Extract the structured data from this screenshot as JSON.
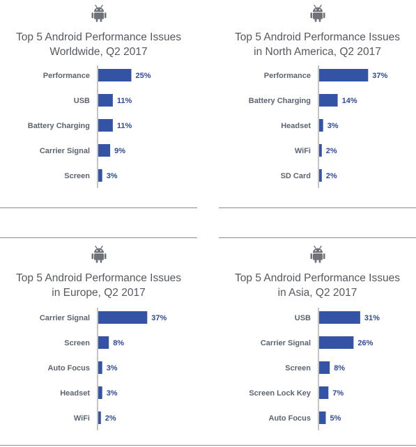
{
  "colors": {
    "bar": "#3553a4",
    "label": "#5c6470",
    "value": "#2f4a9a",
    "title": "#55585e",
    "axis": "#8a8a8a"
  },
  "icon": "android-icon",
  "chart_data": [
    {
      "type": "bar",
      "orientation": "horizontal",
      "title_lines": [
        "Top 5 Android Performance Issues",
        "Worldwide, Q2 2017"
      ],
      "categories": [
        "Performance",
        "USB",
        "Battery Charging",
        "Carrier Signal",
        "Screen"
      ],
      "values": [
        25,
        11,
        11,
        9,
        3
      ],
      "value_labels": [
        "25%",
        "11%",
        "11%",
        "9%",
        "3%"
      ],
      "unit": "%"
    },
    {
      "type": "bar",
      "orientation": "horizontal",
      "title_lines": [
        "Top 5 Android Performance Issues",
        "in North America, Q2 2017"
      ],
      "categories": [
        "Performance",
        "Battery Charging",
        "Headset",
        "WiFi",
        "SD Card"
      ],
      "values": [
        37,
        14,
        3,
        2,
        2
      ],
      "value_labels": [
        "37%",
        "14%",
        "3%",
        "2%",
        "2%"
      ],
      "unit": "%"
    },
    {
      "type": "bar",
      "orientation": "horizontal",
      "title_lines": [
        "Top 5 Android Performance Issues",
        "in Europe, Q2 2017"
      ],
      "categories": [
        "Carrier Signal",
        "Screen",
        "Auto Focus",
        "Headset",
        "WiFi"
      ],
      "values": [
        37,
        8,
        3,
        3,
        2
      ],
      "value_labels": [
        "37%",
        "8%",
        "3%",
        "3%",
        "2%"
      ],
      "unit": "%"
    },
    {
      "type": "bar",
      "orientation": "horizontal",
      "title_lines": [
        "Top 5 Android Performance Issues",
        "in Asia, Q2 2017"
      ],
      "categories": [
        "USB",
        "Carrier Signal",
        "Screen",
        "Screen Lock Key",
        "Auto Focus"
      ],
      "values": [
        31,
        26,
        8,
        7,
        5
      ],
      "value_labels": [
        "31%",
        "26%",
        "8%",
        "7%",
        "5%"
      ],
      "unit": "%"
    }
  ]
}
